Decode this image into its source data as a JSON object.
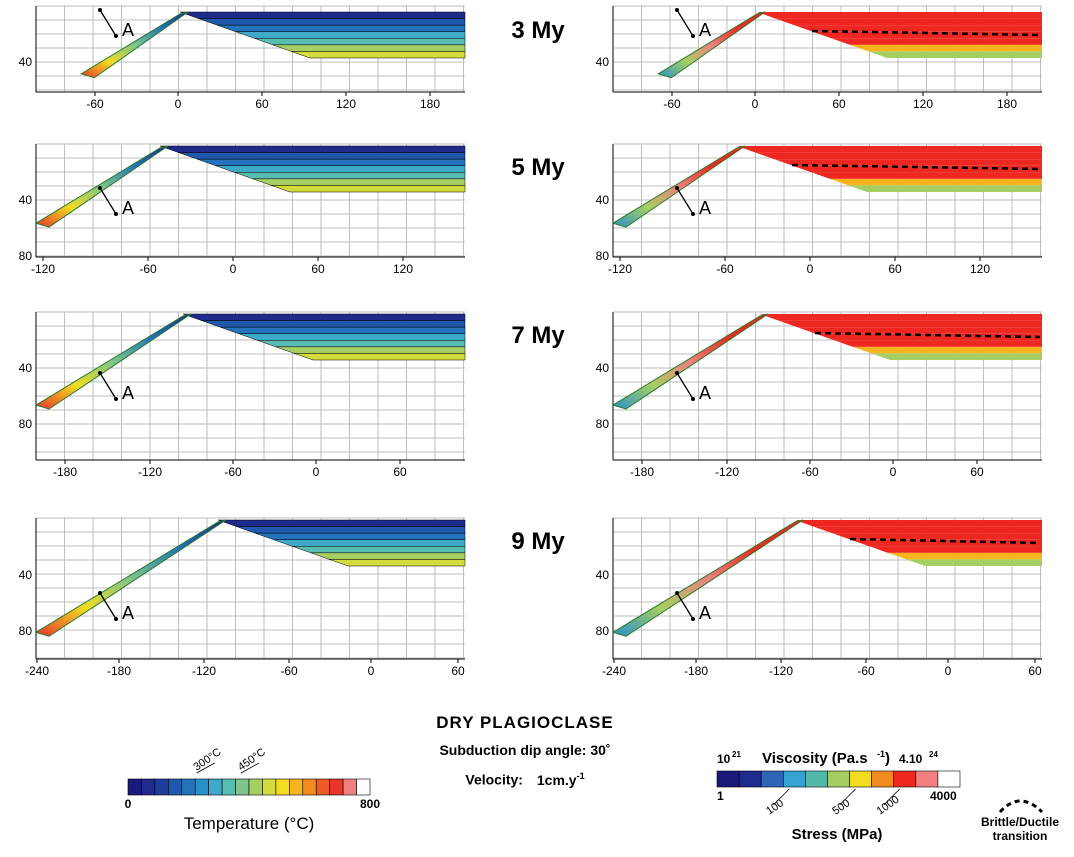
{
  "panels": [
    {
      "time_label": "3 My",
      "x_ticks": [
        "-60",
        "0",
        "60",
        "120",
        "180"
      ],
      "y_ticks": [
        "40"
      ],
      "section_label": "A"
    },
    {
      "time_label": "5 My",
      "x_ticks": [
        "-120",
        "-60",
        "0",
        "60",
        "120"
      ],
      "y_ticks": [
        "40",
        "80"
      ],
      "section_label": "A"
    },
    {
      "time_label": "7 My",
      "x_ticks": [
        "-180",
        "-120",
        "-60",
        "0",
        "60"
      ],
      "y_ticks": [
        "40",
        "80"
      ],
      "section_label": "A"
    },
    {
      "time_label": "9 My",
      "x_ticks": [
        "-240",
        "-180",
        "-120",
        "-60",
        "0",
        "60"
      ],
      "y_ticks": [
        "40",
        "80"
      ],
      "section_label": "A"
    }
  ],
  "title": "DRY PLAGIOCLASE",
  "dip_text": "Subduction dip angle: 30˚",
  "velocity_label": "Velocity:",
  "velocity_value": "1cm.y",
  "velocity_exp": "-1",
  "temperature_legend": {
    "title": "Temperature (°C)",
    "min": "0",
    "max": "800",
    "marks": [
      "300°C",
      "450°C"
    ],
    "colors": [
      "#1a1a7a",
      "#1e2a8c",
      "#1f3d9e",
      "#2058ad",
      "#2374bc",
      "#288fc8",
      "#3ea9c9",
      "#57bcb2",
      "#7ec48c",
      "#a6cf63",
      "#d3dc3c",
      "#f1dc21",
      "#f6b51e",
      "#f28a22",
      "#ee5a25",
      "#e8342a",
      "#f08080",
      "#ffffff"
    ]
  },
  "viscosity_legend": {
    "title": "Viscosity (Pa.s",
    "title_exp": "-1",
    "title_close": ")",
    "min_base": "10",
    "min_exp": "21",
    "max_base": "4.10",
    "max_exp": "24",
    "colors": [
      "#1a1a7a",
      "#1e2a8c",
      "#2e65b6",
      "#35a3d2",
      "#53b8a8",
      "#a6cf63",
      "#f1dc21",
      "#f28a22",
      "#ee2820",
      "#f08080",
      "#ffffff"
    ]
  },
  "stress_legend": {
    "title": "Stress (MPa)",
    "min": "1",
    "max": "4000",
    "marks": [
      "100",
      "500",
      "1000"
    ]
  },
  "transition_label": [
    "Brittle/Ductile",
    "transition"
  ],
  "colors": {
    "grid": "#bdbdbd",
    "hot": "#ee2820",
    "pink": "#f08080",
    "slab_edge": "#2a7a2a"
  }
}
